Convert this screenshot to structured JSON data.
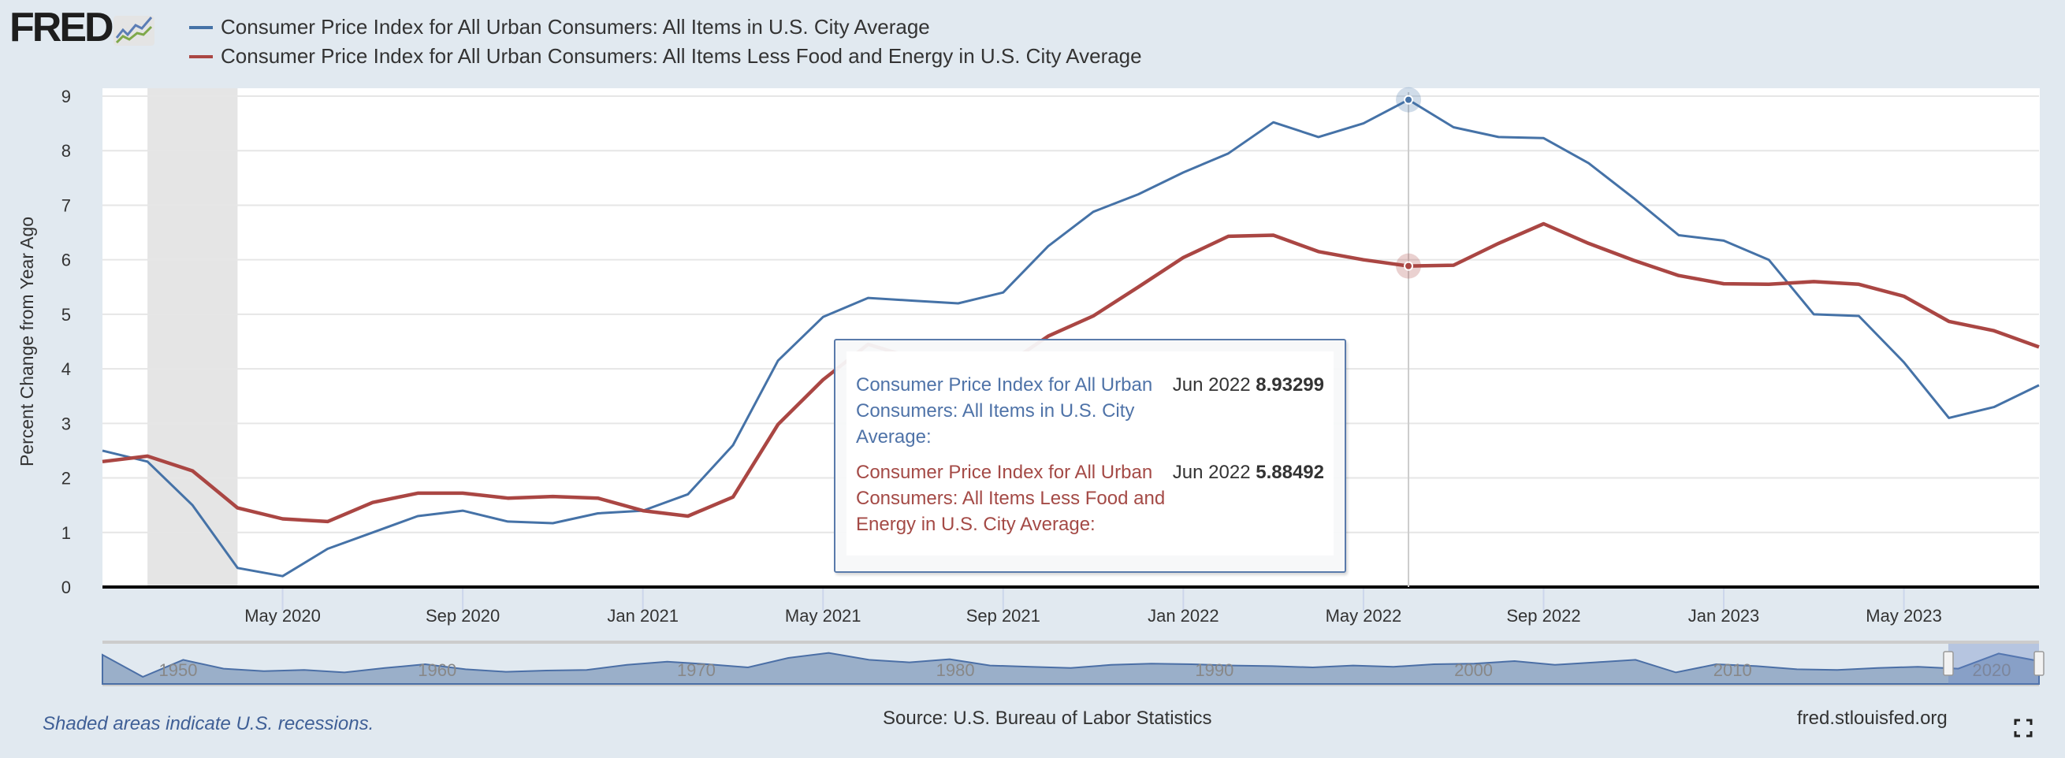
{
  "logo": {
    "text": "FRED"
  },
  "chart_data": {
    "type": "line",
    "ylabel": "Percent Change from Year Ago",
    "ylim": [
      0,
      9
    ],
    "yticks": [
      0,
      1,
      2,
      3,
      4,
      5,
      6,
      7,
      8,
      9
    ],
    "x_start": "2020-01",
    "x_end": "2023-08",
    "xtick_labels": [
      "May 2020",
      "Sep 2020",
      "Jan 2021",
      "May 2021",
      "Sep 2021",
      "Jan 2022",
      "May 2022",
      "Sep 2022",
      "Jan 2023",
      "May 2023"
    ],
    "grid": true,
    "legend_position": "top-left",
    "recession_shading": [
      {
        "start": "2020-02",
        "end": "2020-04"
      }
    ],
    "series": [
      {
        "name": "Consumer Price Index for All Urban Consumers: All Items in U.S. City Average",
        "color": "#4572a7",
        "values": [
          2.5,
          2.3,
          1.5,
          0.35,
          0.2,
          0.7,
          1.0,
          1.3,
          1.4,
          1.2,
          1.17,
          1.35,
          1.4,
          1.7,
          2.6,
          4.15,
          4.95,
          5.3,
          5.25,
          5.2,
          5.4,
          6.25,
          6.88,
          7.2,
          7.6,
          7.95,
          8.52,
          8.25,
          8.5,
          8.93299,
          8.43,
          8.25,
          8.23,
          7.77,
          7.13,
          6.45,
          6.35,
          6.0,
          5.0,
          4.97,
          4.12,
          3.1,
          3.3,
          3.7
        ]
      },
      {
        "name": "Consumer Price Index for All Urban Consumers: All Items Less Food and Energy in U.S. City Average",
        "color": "#aa4643",
        "values": [
          2.3,
          2.4,
          2.13,
          1.45,
          1.25,
          1.2,
          1.55,
          1.72,
          1.72,
          1.63,
          1.66,
          1.63,
          1.4,
          1.3,
          1.65,
          2.98,
          3.8,
          4.45,
          4.2,
          3.96,
          4.04,
          4.6,
          4.97,
          5.5,
          6.04,
          6.43,
          6.45,
          6.15,
          6.0,
          5.88492,
          5.9,
          6.3,
          6.66,
          6.3,
          5.99,
          5.71,
          5.56,
          5.55,
          5.6,
          5.55,
          5.33,
          4.87,
          4.7,
          4.4
        ]
      }
    ],
    "hover": {
      "date": "Jun 2022",
      "values": [
        "8.93299",
        "5.88492"
      ]
    },
    "navigator": {
      "tick_labels": [
        "1950",
        "1960",
        "1970",
        "1980",
        "1990",
        "2000",
        "2010",
        "2020"
      ]
    }
  },
  "tooltip": {
    "rows": [
      {
        "label": "Consumer Price Index for All Urban Consumers: All Items in U.S. City Average:",
        "date": "Jun 2022",
        "value": "8.93299",
        "color": "#4572a7"
      },
      {
        "label": "Consumer Price Index for All Urban Consumers: All Items Less Food and Energy in U.S. City Average:",
        "date": "Jun 2022",
        "value": "5.88492",
        "color": "#aa4643"
      }
    ]
  },
  "footer": {
    "note": "Shaded areas indicate U.S. recessions.",
    "source": "Source: U.S. Bureau of Labor Statistics",
    "site": "fred.stlouisfed.org"
  }
}
